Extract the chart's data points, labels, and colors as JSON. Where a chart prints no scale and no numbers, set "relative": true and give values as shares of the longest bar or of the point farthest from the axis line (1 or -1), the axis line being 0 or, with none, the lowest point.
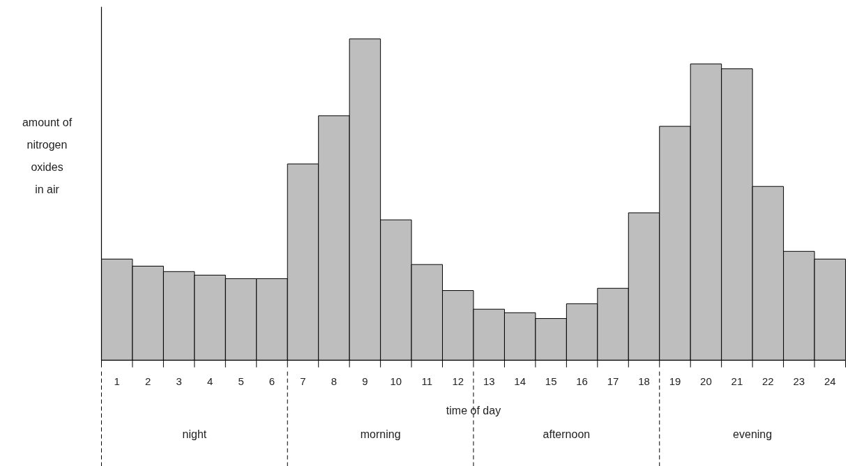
{
  "chart_data": {
    "type": "bar",
    "relative": true,
    "xlabel": "time of day",
    "ylabel": "amount of\nnitrogen\noxides\nin air",
    "x": [
      1,
      2,
      3,
      4,
      5,
      6,
      7,
      8,
      9,
      10,
      11,
      12,
      13,
      14,
      15,
      16,
      17,
      18,
      19,
      20,
      21,
      22,
      23,
      24
    ],
    "values": [
      0.315,
      0.293,
      0.276,
      0.265,
      0.254,
      0.254,
      0.611,
      0.761,
      1,
      0.437,
      0.298,
      0.217,
      0.159,
      0.148,
      0.13,
      0.176,
      0.224,
      0.459,
      0.728,
      0.922,
      0.907,
      0.541,
      0.339,
      0.315
    ],
    "color": "#bebebe",
    "xlim": [
      0.5,
      24.5
    ],
    "xticks": [
      1,
      2,
      3,
      4,
      5,
      6,
      7,
      8,
      9,
      10,
      11,
      12,
      13,
      14,
      15,
      16,
      17,
      18,
      19,
      20,
      21,
      22,
      23,
      24
    ],
    "annotations": [
      "night",
      "morning",
      "afternoon",
      "evening"
    ],
    "grid": false
  }
}
